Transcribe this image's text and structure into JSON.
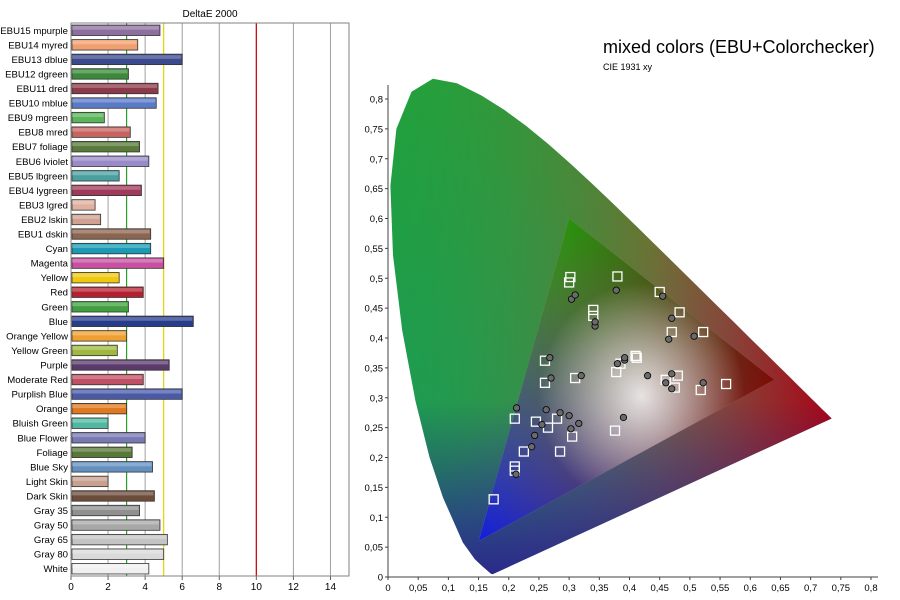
{
  "chart_data": [
    {
      "type": "bar",
      "title": "DeltaE 2000",
      "xlabel": "",
      "ylabel": "",
      "xlim": [
        0,
        15
      ],
      "x_ticks": [
        "0",
        "2",
        "4",
        "6",
        "8",
        "10",
        "12",
        "14"
      ],
      "reference_lines": [
        {
          "value": 3,
          "color": "#2aa02a"
        },
        {
          "value": 5,
          "color": "#e6d200"
        },
        {
          "value": 10,
          "color": "#d00000"
        }
      ],
      "grid": true,
      "categories": [
        "EBU15 mpurple",
        "EBU14 myred",
        "EBU13 dblue",
        "EBU12 dgreen",
        "EBU11 dred",
        "EBU10 mblue",
        "EBU9 mgreen",
        "EBU8 mred",
        "EBU7 foliage",
        "EBU6 lviolet",
        "EBU5 lbgreen",
        "EBU4 lygreen",
        "EBU3 lgred",
        "EBU2 lskin",
        "EBU1 dskin",
        "Cyan",
        "Magenta",
        "Yellow",
        "Red",
        "Green",
        "Blue",
        "Orange Yellow",
        "Yellow Green",
        "Purple",
        "Moderate Red",
        "Purplish Blue",
        "Orange",
        "Bluish Green",
        "Blue Flower",
        "Foliage",
        "Blue Sky",
        "Light Skin",
        "Dark Skin",
        "Gray 35",
        "Gray 50",
        "Gray 65",
        "Gray 80",
        "White"
      ],
      "values": [
        4.8,
        3.6,
        6.0,
        3.1,
        4.7,
        4.6,
        1.8,
        3.2,
        3.7,
        4.2,
        2.6,
        3.8,
        1.3,
        1.6,
        4.3,
        4.3,
        5.0,
        2.6,
        3.9,
        3.1,
        6.6,
        3.0,
        2.5,
        5.3,
        3.9,
        6.0,
        3.0,
        2.0,
        4.0,
        3.3,
        4.4,
        2.0,
        4.5,
        3.7,
        4.8,
        5.2,
        5.0,
        4.2
      ],
      "colors": [
        "#8c6fa0",
        "#f0a070",
        "#3a4a8c",
        "#3a8a3a",
        "#8c3a4a",
        "#5a7ac8",
        "#5ab45a",
        "#c86460",
        "#5a7a3a",
        "#9a8ac8",
        "#4aa0a0",
        "#a03a5a",
        "#e0b0a0",
        "#d0a090",
        "#8c6450",
        "#1a9ab4",
        "#c850a0",
        "#f0c810",
        "#b42030",
        "#40a040",
        "#283c8c",
        "#f0a030",
        "#a0b840",
        "#5a3a6a",
        "#c05064",
        "#4a5aa8",
        "#e07820",
        "#50b8a0",
        "#7878b4",
        "#587838",
        "#6490c0",
        "#c8a090",
        "#6e4c3c",
        "#909090",
        "#a8a8a8",
        "#c4c4c4",
        "#dadada",
        "#f0f0f0"
      ]
    },
    {
      "type": "scatter",
      "title": "mixed colors (EBU+Colorchecker)",
      "subtitle": "CIE 1931 xy",
      "xlabel": "",
      "ylabel": "",
      "xlim": [
        0,
        0.85
      ],
      "ylim": [
        0,
        0.85
      ],
      "x_ticks": [
        "0",
        "0,05",
        "0,1",
        "0,15",
        "0,2",
        "0,25",
        "0,3",
        "0,35",
        "0,4",
        "0,45",
        "0,5",
        "0,55",
        "0,6",
        "0,65",
        "0,7",
        "0,75",
        "0,8"
      ],
      "y_ticks": [
        "0",
        "0,05",
        "0,1",
        "0,15",
        "0,2",
        "0,25",
        "0,3",
        "0,35",
        "0,4",
        "0,45",
        "0,5",
        "0,55",
        "0,6",
        "0,65",
        "0,7",
        "0,75",
        "0,8"
      ],
      "gamut_triangle": [
        [
          0.64,
          0.33
        ],
        [
          0.3,
          0.6
        ],
        [
          0.15,
          0.06
        ]
      ],
      "series": [
        {
          "marker": "square",
          "points": [
            [
              0.175,
              0.13
            ],
            [
              0.21,
              0.185
            ],
            [
              0.21,
              0.178
            ],
            [
              0.225,
              0.21
            ],
            [
              0.245,
              0.26
            ],
            [
              0.265,
              0.25
            ],
            [
              0.28,
              0.265
            ],
            [
              0.285,
              0.21
            ],
            [
              0.305,
              0.235
            ],
            [
              0.21,
              0.265
            ],
            [
              0.26,
              0.325
            ],
            [
              0.26,
              0.362
            ],
            [
              0.3,
              0.493
            ],
            [
              0.302,
              0.502
            ],
            [
              0.38,
              0.503
            ],
            [
              0.34,
              0.447
            ],
            [
              0.34,
              0.437
            ],
            [
              0.31,
              0.333
            ],
            [
              0.378,
              0.343
            ],
            [
              0.385,
              0.357
            ],
            [
              0.41,
              0.37
            ],
            [
              0.412,
              0.367
            ],
            [
              0.45,
              0.477
            ],
            [
              0.47,
              0.41
            ],
            [
              0.483,
              0.443
            ],
            [
              0.522,
              0.41
            ],
            [
              0.46,
              0.33
            ],
            [
              0.48,
              0.337
            ],
            [
              0.475,
              0.317
            ],
            [
              0.518,
              0.313
            ],
            [
              0.56,
              0.323
            ],
            [
              0.376,
              0.245
            ]
          ]
        },
        {
          "marker": "circle",
          "points": [
            [
              0.212,
              0.172
            ],
            [
              0.213,
              0.283
            ],
            [
              0.238,
              0.218
            ],
            [
              0.243,
              0.237
            ],
            [
              0.255,
              0.255
            ],
            [
              0.262,
              0.28
            ],
            [
              0.27,
              0.333
            ],
            [
              0.268,
              0.367
            ],
            [
              0.285,
              0.275
            ],
            [
              0.3,
              0.27
            ],
            [
              0.303,
              0.248
            ],
            [
              0.316,
              0.257
            ],
            [
              0.32,
              0.337
            ],
            [
              0.304,
              0.465
            ],
            [
              0.31,
              0.472
            ],
            [
              0.343,
              0.42
            ],
            [
              0.343,
              0.427
            ],
            [
              0.378,
              0.48
            ],
            [
              0.38,
              0.357
            ],
            [
              0.39,
              0.267
            ],
            [
              0.392,
              0.363
            ],
            [
              0.392,
              0.367
            ],
            [
              0.43,
              0.337
            ],
            [
              0.455,
              0.47
            ],
            [
              0.465,
              0.398
            ],
            [
              0.47,
              0.433
            ],
            [
              0.47,
              0.34
            ],
            [
              0.46,
              0.325
            ],
            [
              0.47,
              0.315
            ],
            [
              0.507,
              0.403
            ],
            [
              0.522,
              0.325
            ]
          ]
        }
      ]
    }
  ]
}
